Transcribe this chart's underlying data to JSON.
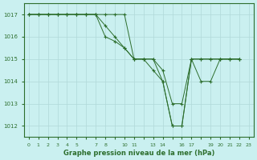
{
  "title": "Graphe pression niveau de la mer (hPa)",
  "bg_color": "#caf0f0",
  "grid_color": "#b0d8d8",
  "line_color": "#2d6e2d",
  "ylim": [
    1011.5,
    1017.5
  ],
  "yticks": [
    1012,
    1013,
    1014,
    1015,
    1016,
    1017
  ],
  "xlabels": [
    "0",
    "1",
    "2",
    "3",
    "4",
    "5",
    "",
    "7",
    "8",
    "",
    "10",
    "11",
    "",
    "13",
    "14",
    "",
    "16",
    "17",
    "",
    "19",
    "20",
    "21",
    "22",
    "23"
  ],
  "series": [
    {
      "x": [
        0,
        1,
        2,
        3,
        4,
        5,
        6,
        7,
        8,
        9,
        10,
        11,
        12,
        13,
        14,
        15,
        16,
        17,
        18,
        19,
        20,
        21,
        22
      ],
      "y": [
        1017,
        1017,
        1017,
        1017,
        1017,
        1017,
        1017,
        1017,
        1017,
        1017,
        1017,
        1015,
        1015,
        1015,
        1014,
        1012,
        1012,
        1015,
        1015,
        1015,
        1015,
        1015,
        1015
      ]
    },
    {
      "x": [
        0,
        1,
        2,
        3,
        4,
        5,
        6,
        7,
        8,
        9,
        10,
        11,
        12,
        13,
        14,
        15,
        16,
        17,
        18,
        19,
        20,
        21,
        22
      ],
      "y": [
        1017,
        1017,
        1017,
        1017,
        1017,
        1017,
        1017,
        1017,
        1016.5,
        1016,
        1015.5,
        1015,
        1015,
        1015,
        1014.5,
        1013,
        1013,
        1015,
        1015,
        1015,
        1015,
        1015,
        1015
      ]
    },
    {
      "x": [
        0,
        1,
        2,
        3,
        4,
        5,
        6,
        7,
        8,
        9,
        10,
        11,
        12,
        13,
        14,
        15,
        16,
        17,
        18,
        19,
        20,
        21,
        22
      ],
      "y": [
        1017,
        1017,
        1017,
        1017,
        1017,
        1017,
        1017,
        1017,
        1016,
        1015.8,
        1015.5,
        1015,
        1015,
        1014.5,
        1014,
        1012,
        1012,
        1015,
        1014,
        1014,
        1015,
        1015,
        1015
      ]
    }
  ]
}
